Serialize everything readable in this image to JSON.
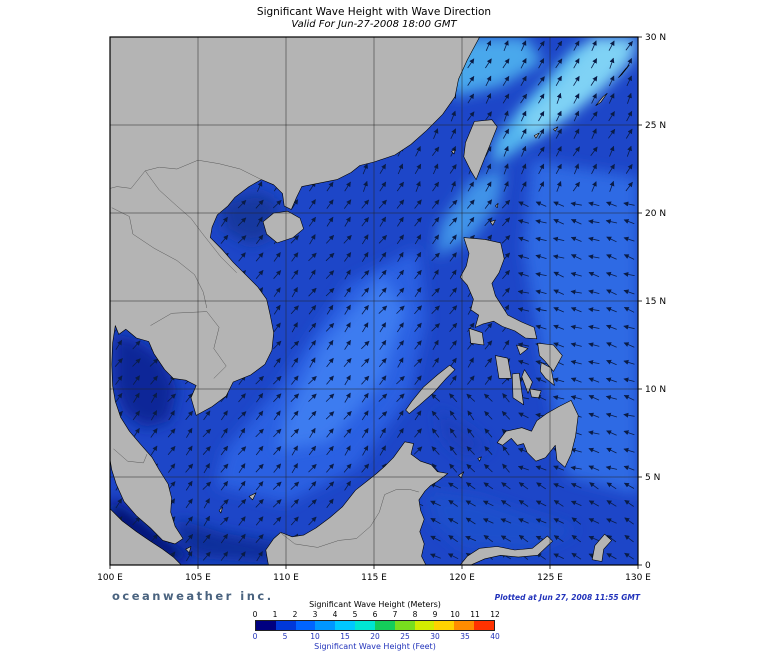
{
  "header": {
    "title": "Significant Wave Height with Wave Direction",
    "subtitle": "Valid For Jun-27-2008 18:00 GMT"
  },
  "footer": {
    "branding": "oceanweather inc.",
    "plotted": "Plotted at Jun 27, 2008 11:55 GMT"
  },
  "axes": {
    "lon_ticks": [
      "100 E",
      "105 E",
      "110 E",
      "115 E",
      "120 E",
      "125 E",
      "130 E"
    ],
    "lat_ticks": [
      "0",
      "5 N",
      "10 N",
      "15 N",
      "20 N",
      "25 N",
      "30 N"
    ]
  },
  "legend": {
    "meters_title": "Significant Wave Height (Meters)",
    "feet_title": "Significant Wave Height (Feet)",
    "meters_ticks": [
      "0",
      "1",
      "2",
      "3",
      "4",
      "5",
      "6",
      "7",
      "8",
      "9",
      "10",
      "11",
      "12"
    ],
    "feet_ticks": [
      "0",
      "5",
      "10",
      "15",
      "20",
      "25",
      "30",
      "35",
      "40"
    ],
    "colors": [
      "#000080",
      "#0038d8",
      "#0064ff",
      "#0096ff",
      "#00c8ff",
      "#00e6d2",
      "#14cd5a",
      "#78de1e",
      "#d2ec00",
      "#ffd200",
      "#ff8c00",
      "#ff3200"
    ]
  },
  "map": {
    "colors": {
      "land": "#b4b4b4",
      "coastline": "#000000",
      "sea_base": "#1d46c8",
      "grid": "#222222",
      "arrow": "#0a1c46"
    }
  }
}
